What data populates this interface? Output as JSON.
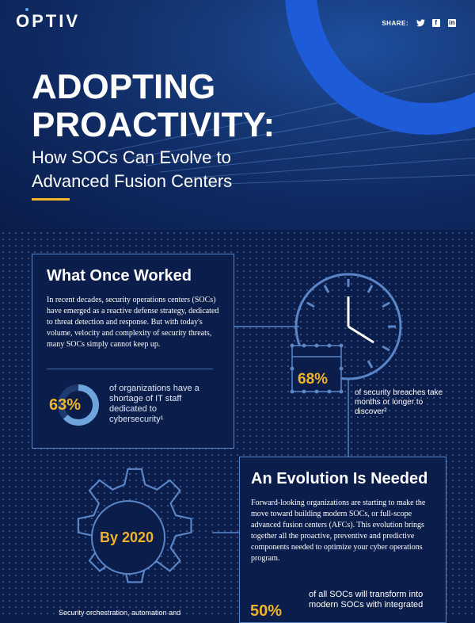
{
  "brand": {
    "logo": "OPTIV"
  },
  "share": {
    "label": "SHARE:",
    "icons": [
      "twitter-icon",
      "facebook-icon",
      "linkedin-icon"
    ]
  },
  "hero": {
    "title_line1": "ADOPTING",
    "title_line2": "PROACTIVITY:",
    "subtitle_line1": "How SOCs Can Evolve to",
    "subtitle_line2": "Advanced Fusion Centers"
  },
  "section1": {
    "heading": "What Once Worked",
    "body": "In recent decades, security operations centers (SOCs) have emerged as a reactive defense strategy, dedicated to threat detection and response. But with today's volume, velocity and complexity of security threats, many SOCs simply cannot keep up.",
    "stat_value": "63%",
    "stat_fraction": 0.63,
    "stat_text": "of organizations have a shortage of IT staff dedicated to cybersecurity¹"
  },
  "stat68": {
    "value": "68%",
    "text": "of security breaches take months or longer to discover²"
  },
  "section2": {
    "heading": "An Evolution Is Needed",
    "body": "Forward-looking organizations are starting to make the move toward building modern SOCs, or full-scope advanced fusion centers (AFCs). This evolution brings together all the proactive, preventive and predictive components needed to optimize your cyber operations program.",
    "stat_value": "50%",
    "stat_text": "of all SOCs will transform into modern SOCs with integrated"
  },
  "gear": {
    "label": "By 2020",
    "caption": "Security orchestration, automation and"
  },
  "colors": {
    "accent": "#f0b429",
    "brand_blue": "#1e5bd8",
    "background": "#0b1d4a",
    "line": "#5a86c8"
  }
}
